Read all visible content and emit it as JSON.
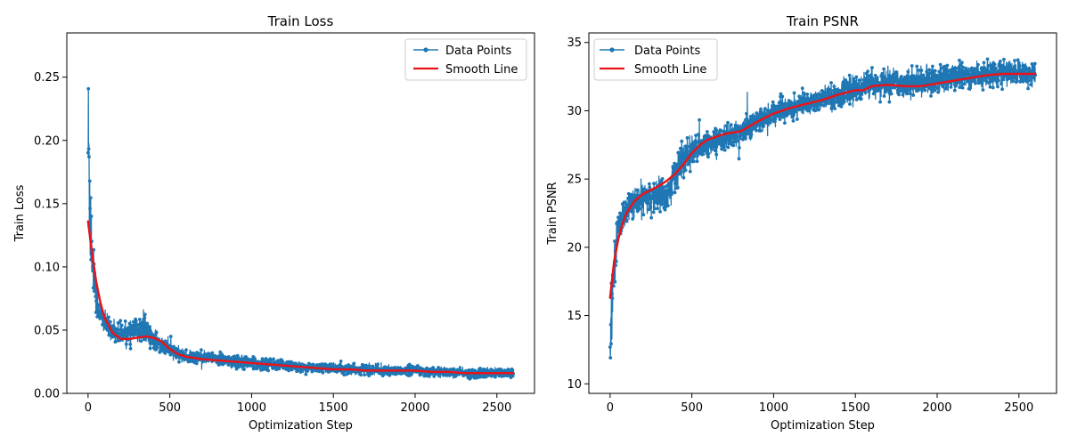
{
  "chart_data": [
    {
      "type": "line",
      "title": "Train Loss",
      "xlabel": "Optimization Step",
      "ylabel": "Train Loss",
      "xlim": [
        -130,
        2730
      ],
      "ylim": [
        0.0,
        0.285
      ],
      "xticks": [
        0,
        500,
        1000,
        1500,
        2000,
        2500
      ],
      "xtick_labels": [
        "0",
        "500",
        "1000",
        "1500",
        "2000",
        "2500"
      ],
      "yticks": [
        0.0,
        0.05,
        0.1,
        0.15,
        0.2,
        0.25
      ],
      "ytick_labels": [
        "0.00",
        "0.05",
        "0.10",
        "0.15",
        "0.20",
        "0.25"
      ],
      "grid": false,
      "legend_position": "upper right",
      "series": [
        {
          "name": "Data Points",
          "color": "#1f77b4",
          "marker": "circle",
          "description": "noisy raw loss per optimization step (envelope read from figure)",
          "x": [
            0,
            5,
            10,
            15,
            20,
            30,
            40,
            50,
            60,
            80,
            100,
            150,
            200,
            250,
            300,
            350,
            400,
            450,
            500,
            550,
            600,
            700,
            800,
            900,
            1000,
            1100,
            1200,
            1300,
            1400,
            1500,
            1600,
            1700,
            1800,
            1900,
            2000,
            2100,
            2200,
            2300,
            2400,
            2500,
            2600
          ],
          "y_center": [
            0.2,
            0.18,
            0.16,
            0.14,
            0.12,
            0.1,
            0.09,
            0.075,
            0.068,
            0.06,
            0.056,
            0.05,
            0.047,
            0.048,
            0.05,
            0.052,
            0.042,
            0.038,
            0.035,
            0.031,
            0.029,
            0.028,
            0.027,
            0.026,
            0.024,
            0.023,
            0.022,
            0.021,
            0.02,
            0.02,
            0.019,
            0.019,
            0.018,
            0.018,
            0.018,
            0.017,
            0.017,
            0.016,
            0.016,
            0.016,
            0.017
          ],
          "y_spread": [
            0.07,
            0.09,
            0.06,
            0.05,
            0.04,
            0.02,
            0.018,
            0.015,
            0.012,
            0.01,
            0.009,
            0.008,
            0.008,
            0.008,
            0.01,
            0.01,
            0.008,
            0.007,
            0.006,
            0.005,
            0.005,
            0.005,
            0.005,
            0.005,
            0.005,
            0.005,
            0.004,
            0.004,
            0.004,
            0.004,
            0.004,
            0.004,
            0.004,
            0.004,
            0.004,
            0.004,
            0.004,
            0.004,
            0.004,
            0.004,
            0.004
          ]
        },
        {
          "name": "Smooth Line",
          "color": "#e8141a",
          "x": [
            0,
            25,
            50,
            75,
            100,
            150,
            200,
            250,
            300,
            350,
            400,
            450,
            500,
            550,
            600,
            700,
            800,
            900,
            1000,
            1100,
            1200,
            1300,
            1400,
            1500,
            1600,
            1700,
            1800,
            1900,
            2000,
            2100,
            2200,
            2300,
            2400,
            2500,
            2600
          ],
          "y": [
            0.136,
            0.11,
            0.088,
            0.072,
            0.06,
            0.048,
            0.043,
            0.043,
            0.044,
            0.045,
            0.044,
            0.041,
            0.035,
            0.031,
            0.029,
            0.027,
            0.026,
            0.025,
            0.024,
            0.023,
            0.022,
            0.021,
            0.02,
            0.019,
            0.019,
            0.018,
            0.018,
            0.018,
            0.018,
            0.017,
            0.017,
            0.016,
            0.016,
            0.016,
            0.016
          ]
        }
      ]
    },
    {
      "type": "line",
      "title": "Train PSNR",
      "xlabel": "Optimization Step",
      "ylabel": "Train PSNR",
      "xlim": [
        -130,
        2730
      ],
      "ylim": [
        9.3,
        35.7
      ],
      "xticks": [
        0,
        500,
        1000,
        1500,
        2000,
        2500
      ],
      "xtick_labels": [
        "0",
        "500",
        "1000",
        "1500",
        "2000",
        "2500"
      ],
      "yticks": [
        10,
        15,
        20,
        25,
        30,
        35
      ],
      "ytick_labels": [
        "10",
        "15",
        "20",
        "25",
        "30",
        "35"
      ],
      "grid": false,
      "legend_position": "upper left",
      "series": [
        {
          "name": "Data Points",
          "color": "#1f77b4",
          "marker": "circle",
          "description": "noisy raw PSNR per optimization step (envelope read from figure)",
          "x": [
            0,
            5,
            10,
            20,
            30,
            40,
            50,
            75,
            100,
            150,
            200,
            250,
            300,
            350,
            400,
            450,
            500,
            550,
            600,
            700,
            800,
            900,
            1000,
            1100,
            1200,
            1300,
            1400,
            1500,
            1600,
            1700,
            1800,
            1900,
            2000,
            2100,
            2200,
            2300,
            2400,
            2500,
            2600
          ],
          "y_center": [
            12,
            14,
            16,
            18,
            19.5,
            20.5,
            21.5,
            22.3,
            22.8,
            23.2,
            23.5,
            23.7,
            23.9,
            23.7,
            25.5,
            26.5,
            27,
            27.3,
            27.6,
            28,
            28.4,
            29.2,
            29.8,
            30.2,
            30.5,
            30.8,
            31.2,
            31.6,
            31.9,
            32,
            32,
            32.1,
            32.3,
            32.5,
            32.6,
            32.7,
            32.8,
            32.8,
            32.7
          ],
          "y_spread": [
            1.5,
            2.5,
            2.5,
            2,
            1.5,
            1.3,
            1.2,
            1.2,
            1.2,
            1.2,
            1.2,
            1.2,
            1.3,
            1.3,
            1.5,
            1.3,
            1.2,
            1,
            1,
            1,
            1,
            1,
            1,
            1,
            1,
            1,
            1,
            1,
            1,
            1,
            1,
            1,
            1,
            1,
            1,
            1,
            1,
            0.9,
            0.8
          ]
        },
        {
          "name": "Smooth Line",
          "color": "#e8141a",
          "x": [
            0,
            25,
            50,
            75,
            100,
            150,
            200,
            250,
            300,
            350,
            400,
            450,
            500,
            550,
            600,
            700,
            800,
            900,
            1000,
            1100,
            1200,
            1300,
            1400,
            1500,
            1550,
            1600,
            1700,
            1800,
            1900,
            2000,
            2100,
            2200,
            2300,
            2400,
            2500,
            2600
          ],
          "y": [
            16.3,
            19,
            20.6,
            21.7,
            22.5,
            23.4,
            23.9,
            24.2,
            24.5,
            24.9,
            25.4,
            26.1,
            26.9,
            27.5,
            27.9,
            28.3,
            28.5,
            29.2,
            29.8,
            30.2,
            30.5,
            30.8,
            31.2,
            31.5,
            31.5,
            31.8,
            31.9,
            31.8,
            31.8,
            32.0,
            32.2,
            32.4,
            32.6,
            32.7,
            32.7,
            32.7
          ]
        }
      ]
    }
  ]
}
